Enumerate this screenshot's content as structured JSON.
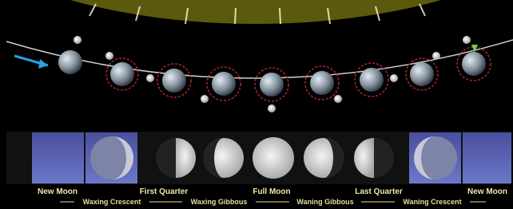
{
  "phases": [
    "New Moon",
    "First Quarter",
    "Full Moon",
    "Last Quarter",
    "New Moon"
  ],
  "transitions": [
    "Waxing Crescent",
    "Waxing Gibbous",
    "Waning Gibbous",
    "Waning Crescent"
  ]
}
